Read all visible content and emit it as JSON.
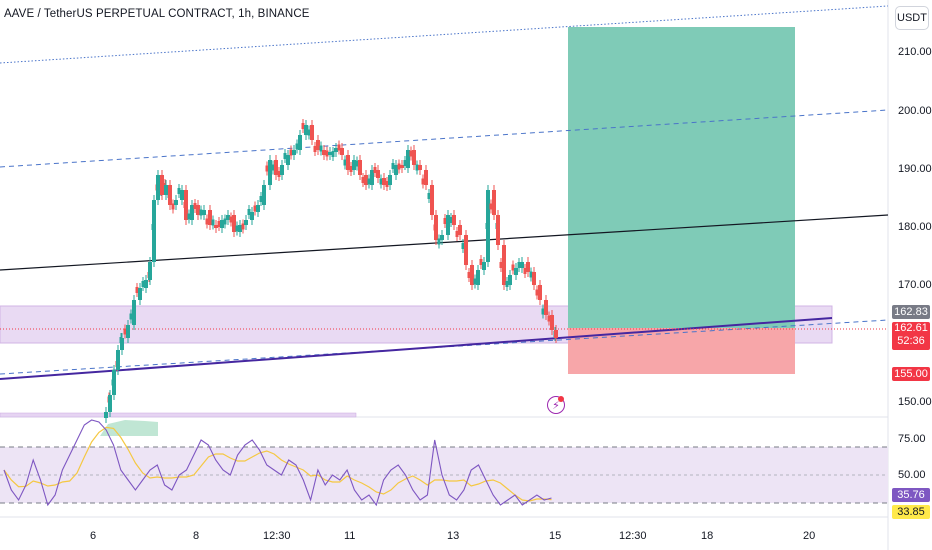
{
  "header": {
    "title": "AAVE / TetherUS PERPETUAL CONTRACT, 1h, BINANCE",
    "unit_button": "USDT"
  },
  "price_axis": {
    "ticks": [
      "210.00",
      "200.00",
      "190.00",
      "180.00",
      "170.00",
      "150.00"
    ],
    "tick_values": [
      210,
      200,
      190,
      180,
      170,
      150
    ]
  },
  "rsi_axis": {
    "ticks": [
      "75.00",
      "50.00"
    ],
    "tick_values": [
      75,
      50
    ]
  },
  "time_axis": {
    "labels": [
      "6",
      "8",
      "12:30",
      "11",
      "13",
      "15",
      "12:30",
      "18",
      "20"
    ]
  },
  "price_tags": {
    "last_price": "162.83",
    "current_price": "162.61",
    "countdown": "52:36",
    "stop_price": "155.00",
    "rsi_value": "35.76",
    "rsi_ma_value": "33.85"
  },
  "colors": {
    "up_candle": "#26a69a",
    "down_candle": "#ef5350",
    "profit_zone": "#7fcbb7",
    "loss_zone": "#f7a6a9",
    "zone_band": "#e6d4f2",
    "trendline_dark": "#131722",
    "channel_blue": "#4a74c9",
    "support_line": "#4527a0",
    "rsi_line": "#7e57c2",
    "rsi_ma": "#f5c842",
    "last_tag": "#787b86",
    "current_tag": "#f23645",
    "rsi_tag": "#7e57c2",
    "rsi_ma_tag": "#ffe94a"
  },
  "icons": {
    "alert": "lightning-bolt-icon"
  }
}
